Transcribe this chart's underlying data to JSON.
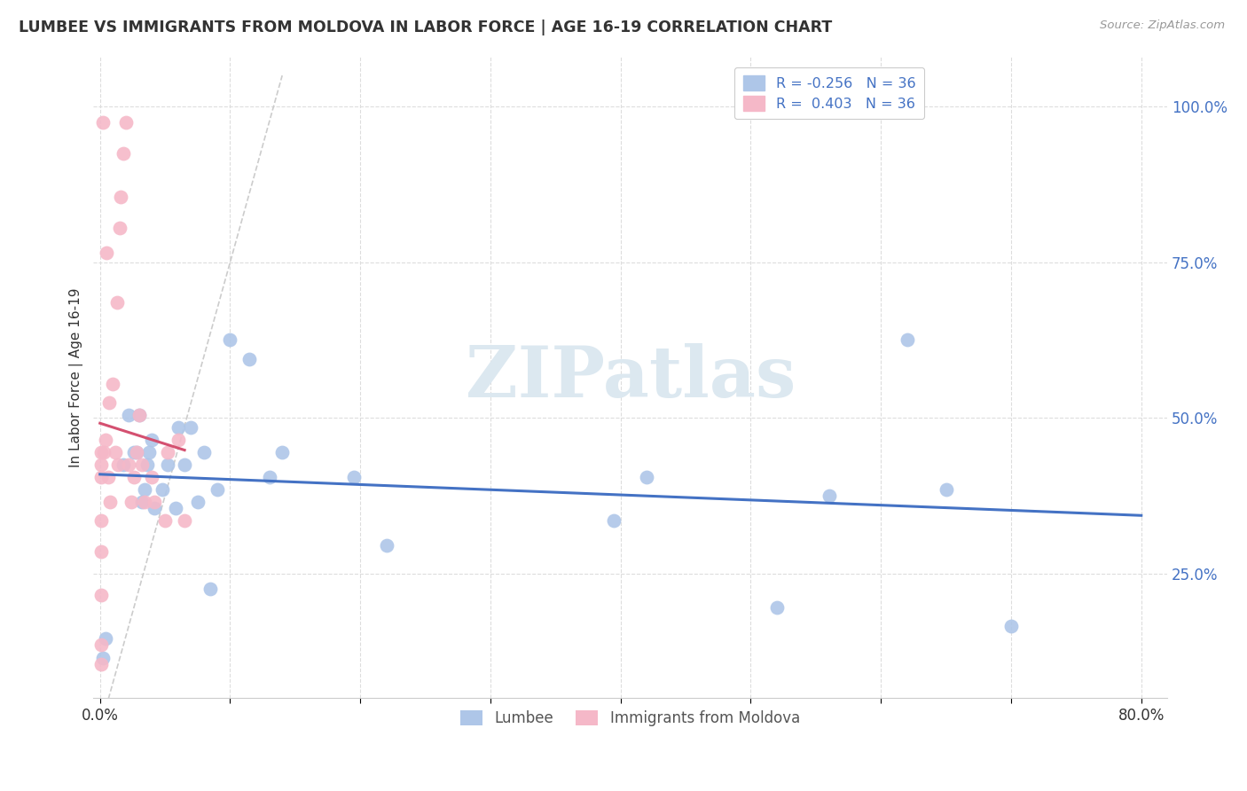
{
  "title": "LUMBEE VS IMMIGRANTS FROM MOLDOVA IN LABOR FORCE | AGE 16-19 CORRELATION CHART",
  "source": "Source: ZipAtlas.com",
  "ylabel": "In Labor Force | Age 16-19",
  "xlim": [
    -0.005,
    0.82
  ],
  "ylim": [
    0.05,
    1.08
  ],
  "lumbee_color": "#aec6e8",
  "moldova_color": "#f5b8c8",
  "trendline_lumbee_color": "#4472c4",
  "trendline_moldova_color": "#d45070",
  "watermark_text": "ZIPatlas",
  "lumbee_x": [
    0.002,
    0.004,
    0.018,
    0.022,
    0.026,
    0.028,
    0.03,
    0.032,
    0.034,
    0.036,
    0.038,
    0.04,
    0.042,
    0.048,
    0.052,
    0.058,
    0.06,
    0.065,
    0.07,
    0.075,
    0.08,
    0.085,
    0.09,
    0.1,
    0.115,
    0.13,
    0.14,
    0.195,
    0.22,
    0.395,
    0.42,
    0.52,
    0.56,
    0.62,
    0.65,
    0.7
  ],
  "lumbee_y": [
    0.115,
    0.145,
    0.425,
    0.505,
    0.445,
    0.445,
    0.505,
    0.365,
    0.385,
    0.425,
    0.445,
    0.465,
    0.355,
    0.385,
    0.425,
    0.355,
    0.485,
    0.425,
    0.485,
    0.365,
    0.445,
    0.225,
    0.385,
    0.625,
    0.595,
    0.405,
    0.445,
    0.405,
    0.295,
    0.335,
    0.405,
    0.195,
    0.375,
    0.625,
    0.385,
    0.165
  ],
  "moldova_x": [
    0.001,
    0.001,
    0.001,
    0.001,
    0.001,
    0.001,
    0.001,
    0.001,
    0.002,
    0.003,
    0.004,
    0.005,
    0.006,
    0.007,
    0.008,
    0.01,
    0.012,
    0.013,
    0.014,
    0.015,
    0.016,
    0.018,
    0.02,
    0.022,
    0.024,
    0.026,
    0.028,
    0.03,
    0.032,
    0.034,
    0.04,
    0.042,
    0.05,
    0.052,
    0.06,
    0.065
  ],
  "moldova_y": [
    0.105,
    0.135,
    0.215,
    0.285,
    0.335,
    0.405,
    0.425,
    0.445,
    0.975,
    0.445,
    0.465,
    0.765,
    0.405,
    0.525,
    0.365,
    0.555,
    0.445,
    0.685,
    0.425,
    0.805,
    0.855,
    0.925,
    0.975,
    0.425,
    0.365,
    0.405,
    0.445,
    0.505,
    0.425,
    0.365,
    0.405,
    0.365,
    0.335,
    0.445,
    0.465,
    0.335
  ],
  "ref_line_x": [
    0.0,
    0.14
  ],
  "ref_line_y": [
    0.0,
    1.05
  ]
}
